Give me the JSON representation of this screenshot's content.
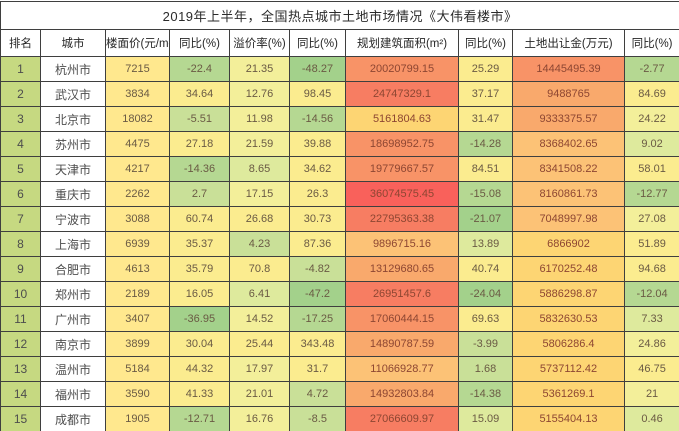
{
  "title": "2019年上半年，全国热点城市土地市场情况《大伟看楼市》",
  "columns": [
    "排名",
    "城市",
    "楼面价(元/m²)",
    "同比(%)",
    "溢价率(%)",
    "同比(%)",
    "规划建筑面积(m²)",
    "同比(%)",
    "土地出让金(万元)",
    "同比(%)"
  ],
  "palette": {
    "rank": "#c6d981",
    "white": "#ffffff",
    "yf": "#ffe88e",
    "g1": "#a3d18b",
    "g2": "#b5d892",
    "g3": "#c9e098",
    "gy": "#deea9d",
    "y1": "#f3ef9a",
    "y2": "#fbec8f",
    "o1": "#fdd573",
    "o2": "#fcc276",
    "o3": "#f9a96c",
    "o4": "#f89367",
    "o5": "#f77d62",
    "r": "#f9615b"
  },
  "warm_keys": [
    "o1",
    "o2",
    "o3",
    "o4",
    "o5",
    "r"
  ],
  "rows": [
    {
      "rank": "1",
      "city": "杭州市",
      "values": [
        "7215",
        "-22.4",
        "21.35",
        "-48.27",
        "20020799.15",
        "25.29",
        "14445495.39",
        "-2.77"
      ],
      "colors": [
        "yf",
        "g2",
        "y1",
        "g1",
        "o4",
        "y2",
        "o4",
        "g2"
      ]
    },
    {
      "rank": "2",
      "city": "武汉市",
      "values": [
        "3834",
        "34.64",
        "12.76",
        "98.45",
        "24747329.1",
        "37.17",
        "9488765",
        "84.69"
      ],
      "colors": [
        "yf",
        "y2",
        "y1",
        "y2",
        "o5",
        "y2",
        "o3",
        "y2"
      ]
    },
    {
      "rank": "3",
      "city": "北京市",
      "values": [
        "18082",
        "-5.51",
        "11.98",
        "-14.56",
        "5161804.63",
        "31.47",
        "9333375.57",
        "24.22"
      ],
      "colors": [
        "yf",
        "g3",
        "y1",
        "g2",
        "o1",
        "y2",
        "o3",
        "y1"
      ]
    },
    {
      "rank": "4",
      "city": "苏州市",
      "values": [
        "4475",
        "27.18",
        "21.59",
        "39.88",
        "18698952.75",
        "-14.28",
        "8368402.65",
        "9.02"
      ],
      "colors": [
        "yf",
        "y2",
        "y1",
        "y2",
        "o4",
        "g2",
        "o2",
        "gy"
      ]
    },
    {
      "rank": "5",
      "city": "天津市",
      "values": [
        "4217",
        "-14.36",
        "8.65",
        "34.62",
        "19779667.57",
        "84.51",
        "8341508.22",
        "58.01"
      ],
      "colors": [
        "yf",
        "g2",
        "gy",
        "y2",
        "o4",
        "y2",
        "o2",
        "y2"
      ]
    },
    {
      "rank": "6",
      "city": "重庆市",
      "values": [
        "2262",
        "2.7",
        "17.15",
        "26.3",
        "36074575.45",
        "-15.08",
        "8160861.73",
        "-12.77"
      ],
      "colors": [
        "yf",
        "g3",
        "y1",
        "y2",
        "r",
        "g2",
        "o2",
        "g2"
      ]
    },
    {
      "rank": "7",
      "city": "宁波市",
      "values": [
        "3088",
        "60.74",
        "26.68",
        "30.73",
        "22795363.38",
        "-21.07",
        "7048997.98",
        "27.08"
      ],
      "colors": [
        "yf",
        "y2",
        "y2",
        "y2",
        "o5",
        "g1",
        "o2",
        "y1"
      ]
    },
    {
      "rank": "8",
      "city": "上海市",
      "values": [
        "6939",
        "35.37",
        "4.23",
        "87.36",
        "9896715.16",
        "13.89",
        "6866902",
        "51.89"
      ],
      "colors": [
        "yf",
        "y2",
        "g3",
        "y2",
        "o2",
        "gy",
        "o1",
        "y2"
      ]
    },
    {
      "rank": "9",
      "city": "合肥市",
      "values": [
        "4613",
        "35.79",
        "70.8",
        "-4.82",
        "13129680.65",
        "40.74",
        "6170252.48",
        "94.68"
      ],
      "colors": [
        "yf",
        "y2",
        "y2",
        "g3",
        "o3",
        "y2",
        "o1",
        "y2"
      ]
    },
    {
      "rank": "10",
      "city": "郑州市",
      "values": [
        "2189",
        "16.05",
        "6.41",
        "-47.2",
        "26951457.6",
        "-24.04",
        "5886298.87",
        "-12.04"
      ],
      "colors": [
        "yf",
        "y2",
        "gy",
        "g1",
        "o5",
        "g1",
        "o1",
        "g2"
      ]
    },
    {
      "rank": "11",
      "city": "广州市",
      "values": [
        "3407",
        "-36.95",
        "14.52",
        "-17.25",
        "17060444.15",
        "69.63",
        "5832630.53",
        "7.33"
      ],
      "colors": [
        "yf",
        "g1",
        "y1",
        "g2",
        "o4",
        "y2",
        "o1",
        "gy"
      ]
    },
    {
      "rank": "12",
      "city": "南京市",
      "values": [
        "3899",
        "30.04",
        "25.44",
        "343.48",
        "14890787.59",
        "-3.99",
        "5806286.4",
        "24.86"
      ],
      "colors": [
        "yf",
        "y2",
        "y2",
        "y2",
        "o3",
        "g3",
        "o1",
        "y1"
      ]
    },
    {
      "rank": "13",
      "city": "温州市",
      "values": [
        "5184",
        "44.32",
        "17.97",
        "31.7",
        "11066928.77",
        "1.68",
        "5737112.42",
        "46.75"
      ],
      "colors": [
        "yf",
        "y2",
        "y1",
        "y2",
        "o2",
        "g3",
        "o1",
        "y2"
      ]
    },
    {
      "rank": "14",
      "city": "福州市",
      "values": [
        "3590",
        "41.33",
        "21.01",
        "4.72",
        "14932803.84",
        "-14.38",
        "5361269.1",
        "21"
      ],
      "colors": [
        "yf",
        "y2",
        "y1",
        "g3",
        "o3",
        "g2",
        "o1",
        "y1"
      ]
    },
    {
      "rank": "15",
      "city": "成都市",
      "values": [
        "1905",
        "-12.71",
        "16.76",
        "-8.5",
        "27066609.97",
        "15.09",
        "5155404.13",
        "0.46"
      ],
      "colors": [
        "yf",
        "g2",
        "y1",
        "g3",
        "o5",
        "gy",
        "o1",
        "gy"
      ]
    }
  ],
  "partial_row_colors": [
    "rank",
    "white",
    "yf",
    "g2",
    "y1",
    "y2",
    "o5",
    "g3",
    "o3",
    "gy"
  ]
}
